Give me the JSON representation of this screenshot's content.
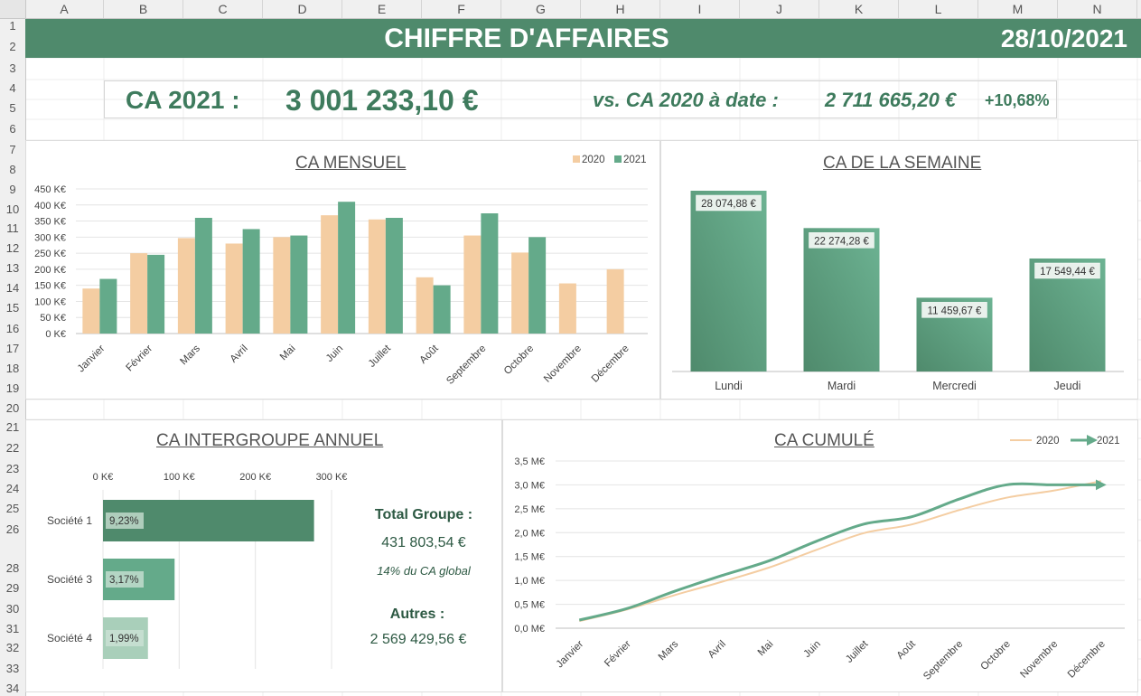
{
  "sheet": {
    "columns": [
      "A",
      "B",
      "C",
      "D",
      "E",
      "F",
      "G",
      "H",
      "I",
      "J",
      "K",
      "L",
      "M",
      "N"
    ],
    "rows": [
      "1",
      "2",
      "3",
      "4",
      "5",
      "6",
      "7",
      "8",
      "9",
      "10",
      "11",
      "12",
      "13",
      "14",
      "15",
      "16",
      "17",
      "18",
      "19",
      "20",
      "21",
      "22",
      "23",
      "24",
      "25",
      "26",
      "28",
      "29",
      "30",
      "31",
      "32",
      "33",
      "34"
    ]
  },
  "header": {
    "title": "CHIFFRE D'AFFAIRES",
    "date": "28/10/2021"
  },
  "kpi": {
    "label_2021": "CA 2021 :",
    "value_2021": "3 001 233,10 €",
    "label_2020": "vs. CA 2020 à date :",
    "value_2020": "2 711 665,20 €",
    "change": "+10,68%"
  },
  "colors": {
    "green_dark": "#4f8a6c",
    "green": "#64aa8a",
    "peach": "#f4cda2",
    "text_green": "#3e7b5d"
  },
  "chart_data": [
    {
      "id": "monthly",
      "type": "bar",
      "title": "CA MENSUEL",
      "categories": [
        "Janvier",
        "Février",
        "Mars",
        "Avril",
        "Mai",
        "Juin",
        "Juillet",
        "Août",
        "Septembre",
        "Octobre",
        "Novembre",
        "Décembre"
      ],
      "series": [
        {
          "name": "2020",
          "color": "#f4cda2",
          "values": [
            140,
            250,
            297,
            280,
            300,
            368,
            355,
            175,
            305,
            252,
            156,
            200
          ]
        },
        {
          "name": "2021",
          "color": "#64aa8a",
          "values": [
            170,
            245,
            360,
            325,
            305,
            410,
            360,
            150,
            374,
            300,
            null,
            null
          ]
        }
      ],
      "yticks": [
        "450 K€",
        "400 K€",
        "350 K€",
        "300 K€",
        "250 K€",
        "200 K€",
        "150 K€",
        "100 K€",
        "50 K€",
        "0 K€"
      ],
      "ylim": [
        0,
        450
      ],
      "legend": "top-right"
    },
    {
      "id": "week",
      "type": "bar",
      "title": "CA DE LA SEMAINE",
      "categories": [
        "Lundi",
        "Mardi",
        "Mercredi",
        "Jeudi"
      ],
      "values": [
        28074.88,
        22274.28,
        11459.67,
        17549.44
      ],
      "labels": [
        "28 074,88 €",
        "22 274,28 €",
        "11 459,67 €",
        "17 549,44 €"
      ]
    },
    {
      "id": "intergroupe",
      "type": "bar",
      "orientation": "horizontal",
      "title": "CA INTERGROUPE ANNUEL",
      "categories": [
        "Société 1",
        "Société 3",
        "Société 4"
      ],
      "values": [
        277,
        94,
        59
      ],
      "labels": [
        "9,23%",
        "3,17%",
        "1,99%"
      ],
      "colors": [
        "#4f8a6c",
        "#64aa8a",
        "#a9cfba"
      ],
      "xticks": [
        "0 K€",
        "100 K€",
        "200 K€",
        "300 K€"
      ],
      "xlim": [
        0,
        300
      ]
    },
    {
      "id": "cumul",
      "type": "line",
      "title": "CA CUMULÉ",
      "categories": [
        "Janvier",
        "Février",
        "Mars",
        "Avril",
        "Mai",
        "Juin",
        "Juillet",
        "Août",
        "Septembre",
        "Octobre",
        "Novembre",
        "Décembre"
      ],
      "series": [
        {
          "name": "2020",
          "color": "#f4cda2",
          "values": [
            0.15,
            0.39,
            0.69,
            0.97,
            1.27,
            1.64,
            1.99,
            2.17,
            2.47,
            2.73,
            2.88,
            3.08
          ]
        },
        {
          "name": "2021",
          "color": "#64aa8a",
          "values": [
            0.17,
            0.41,
            0.77,
            1.1,
            1.41,
            1.82,
            2.18,
            2.33,
            2.7,
            3.0,
            3.0,
            3.0
          ]
        }
      ],
      "yticks": [
        "3,5 M€",
        "3,0 M€",
        "2,5 M€",
        "2,0 M€",
        "1,5 M€",
        "1,0 M€",
        "0,5 M€",
        "0,0 M€"
      ],
      "ylim": [
        0,
        3.5
      ],
      "legend": "top-right"
    }
  ],
  "totals": {
    "total_label": "Total Groupe :",
    "total_value": "431 803,54 €",
    "total_share": "14% du CA global",
    "autres_label": "Autres :",
    "autres_value": "2 569 429,56 €"
  }
}
